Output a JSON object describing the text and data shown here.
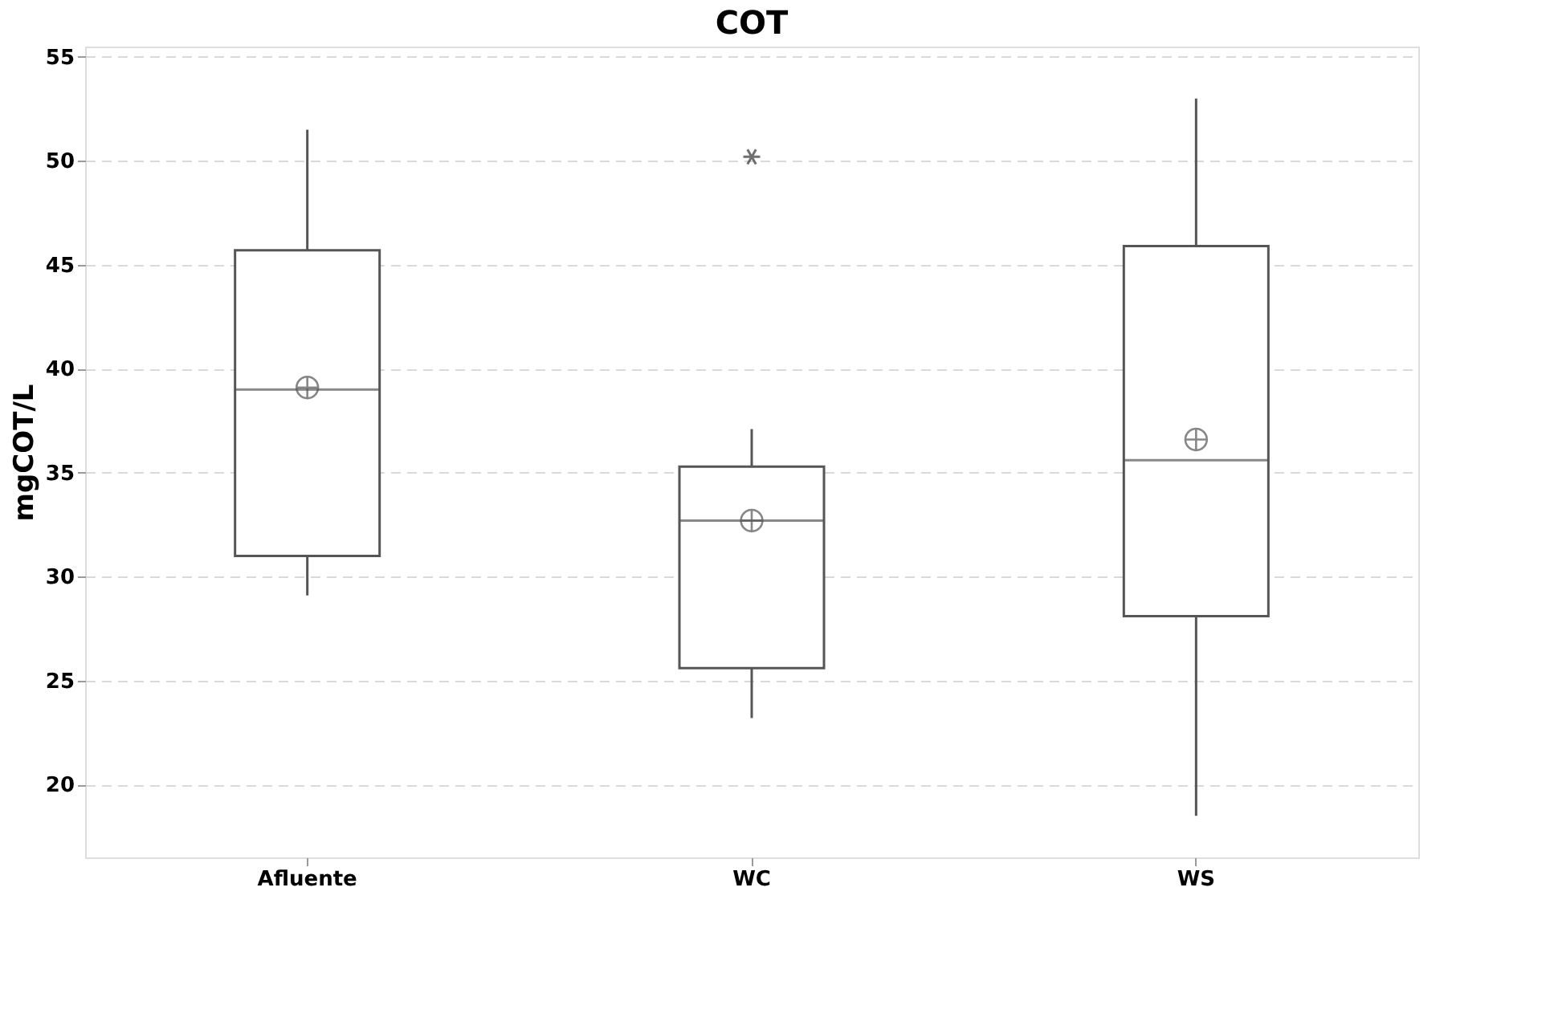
{
  "chart_data": {
    "type": "box",
    "title": "COT",
    "ylabel": "mgCOT/L",
    "categories": [
      "Afluente",
      "WC",
      "WS"
    ],
    "boxes": [
      {
        "low": 29.1,
        "q1": 31.0,
        "median": 39.0,
        "q3": 45.7,
        "high": 51.5,
        "mean": 39.1
      },
      {
        "low": 23.2,
        "q1": 25.6,
        "median": 32.7,
        "q3": 35.3,
        "high": 37.1,
        "mean": 32.7,
        "outliers": [
          50.2
        ]
      },
      {
        "low": 18.5,
        "q1": 28.1,
        "median": 35.6,
        "q3": 45.9,
        "high": 53.0,
        "mean": 36.6
      }
    ],
    "color": "#555555",
    "ylim": [
      16.5,
      55.5
    ],
    "yticks": [
      20,
      25,
      30,
      35,
      40,
      45,
      50,
      55
    ],
    "grid": "y"
  }
}
